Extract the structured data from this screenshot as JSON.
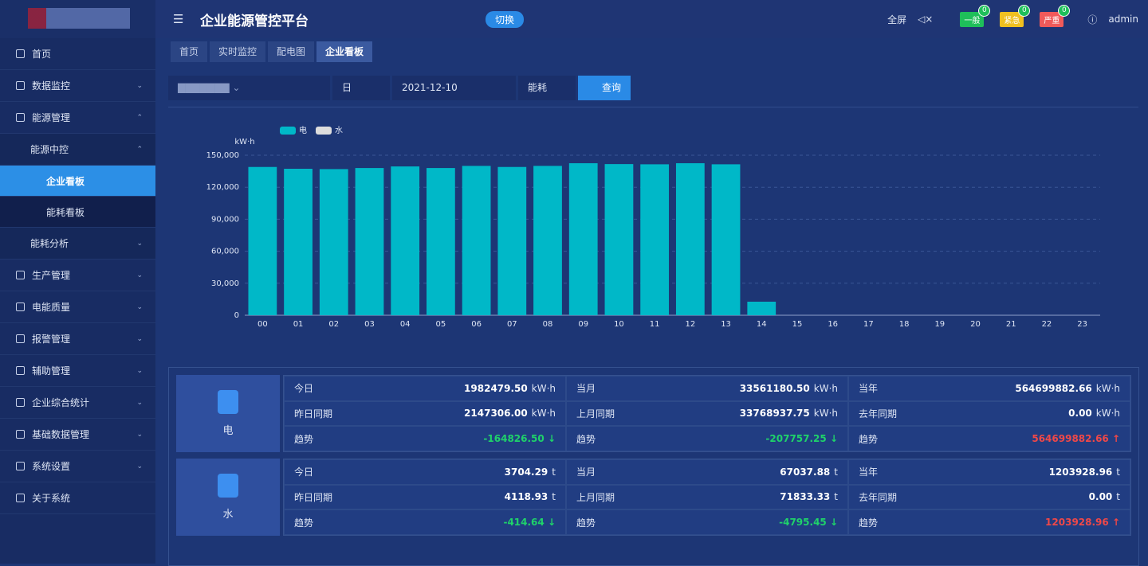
{
  "header": {
    "title": "企业能源管控平台",
    "switch": "切换",
    "fullscreen": "全屏",
    "badges": [
      {
        "label": "一般",
        "count": 0,
        "color": "#1fbf5a"
      },
      {
        "label": "紧急",
        "count": 0,
        "color": "#f0c020"
      },
      {
        "label": "严重",
        "count": 0,
        "color": "#f05a5a"
      }
    ],
    "user": "admin"
  },
  "sidebar": [
    {
      "label": "首页",
      "level": 0
    },
    {
      "label": "数据监控",
      "level": 0,
      "arrow": "down"
    },
    {
      "label": "能源管理",
      "level": 0,
      "arrow": "up"
    },
    {
      "label": "能源中控",
      "level": 1,
      "arrow": "up"
    },
    {
      "label": "企业看板",
      "level": 2,
      "active": true
    },
    {
      "label": "能耗看板",
      "level": 2
    },
    {
      "label": "能耗分析",
      "level": 1,
      "arrow": "down"
    },
    {
      "label": "生产管理",
      "level": 0,
      "arrow": "down"
    },
    {
      "label": "电能质量",
      "level": 0,
      "arrow": "down"
    },
    {
      "label": "报警管理",
      "level": 0,
      "arrow": "down"
    },
    {
      "label": "辅助管理",
      "level": 0,
      "arrow": "down"
    },
    {
      "label": "企业综合统计",
      "level": 0,
      "arrow": "down"
    },
    {
      "label": "基础数据管理",
      "level": 0,
      "arrow": "down"
    },
    {
      "label": "系统设置",
      "level": 0,
      "arrow": "down"
    },
    {
      "label": "关于系统",
      "level": 0
    }
  ],
  "tabs": [
    {
      "label": "首页"
    },
    {
      "label": "实时监控"
    },
    {
      "label": "配电图"
    },
    {
      "label": "企业看板",
      "active": true
    }
  ],
  "filters": {
    "period": "日",
    "date": "2021-12-10",
    "metric": "能耗",
    "query": "查询"
  },
  "chart_data": {
    "type": "bar",
    "unit": "kW·h",
    "categories": [
      "00",
      "01",
      "02",
      "03",
      "04",
      "05",
      "06",
      "07",
      "08",
      "09",
      "10",
      "11",
      "12",
      "13",
      "14",
      "15",
      "16",
      "17",
      "18",
      "19",
      "20",
      "21",
      "22",
      "23"
    ],
    "series": [
      {
        "name": "电",
        "color": "#00b8c8",
        "values": [
          139000,
          137300,
          137000,
          138000,
          139500,
          138000,
          140000,
          139000,
          140000,
          142500,
          141700,
          141500,
          142500,
          141500,
          12700,
          null,
          null,
          null,
          null,
          null,
          null,
          null,
          null,
          null
        ]
      },
      {
        "name": "水",
        "color": "#dddddd",
        "values": [
          null,
          null,
          null,
          null,
          null,
          null,
          null,
          null,
          null,
          null,
          null,
          null,
          null,
          null,
          null,
          null,
          null,
          null,
          null,
          null,
          null,
          null,
          null,
          null
        ]
      }
    ],
    "ylim": [
      0,
      150000
    ],
    "yticks": [
      0,
      {
        "value": 30000,
        "label": "30,000"
      },
      {
        "value": 60000,
        "label": "60,000"
      },
      {
        "value": 90000,
        "label": "90,000"
      },
      {
        "value": 120000,
        "label": "120,000"
      },
      {
        "value": 150000,
        "label": "150,000"
      }
    ],
    "grid": true
  },
  "cards": [
    {
      "name": "电",
      "rows": [
        [
          {
            "label": "今日",
            "value": "1982479.50",
            "unit": "kW·h"
          },
          {
            "label": "当月",
            "value": "33561180.50",
            "unit": "kW·h"
          },
          {
            "label": "当年",
            "value": "564699882.66",
            "unit": "kW·h"
          }
        ],
        [
          {
            "label": "昨日同期",
            "value": "2147306.00",
            "unit": "kW·h"
          },
          {
            "label": "上月同期",
            "value": "33768937.75",
            "unit": "kW·h"
          },
          {
            "label": "去年同期",
            "value": "0.00",
            "unit": "kW·h"
          }
        ],
        [
          {
            "label": "趋势",
            "value": "-164826.50",
            "trend": "down"
          },
          {
            "label": "趋势",
            "value": "-207757.25",
            "trend": "down"
          },
          {
            "label": "趋势",
            "value": "564699882.66",
            "trend": "up"
          }
        ]
      ]
    },
    {
      "name": "水",
      "rows": [
        [
          {
            "label": "今日",
            "value": "3704.29",
            "unit": "t"
          },
          {
            "label": "当月",
            "value": "67037.88",
            "unit": "t"
          },
          {
            "label": "当年",
            "value": "1203928.96",
            "unit": "t"
          }
        ],
        [
          {
            "label": "昨日同期",
            "value": "4118.93",
            "unit": "t"
          },
          {
            "label": "上月同期",
            "value": "71833.33",
            "unit": "t"
          },
          {
            "label": "去年同期",
            "value": "0.00",
            "unit": "t"
          }
        ],
        [
          {
            "label": "趋势",
            "value": "-414.64",
            "trend": "down"
          },
          {
            "label": "趋势",
            "value": "-4795.45",
            "trend": "down"
          },
          {
            "label": "趋势",
            "value": "1203928.96",
            "trend": "up"
          }
        ]
      ]
    }
  ]
}
